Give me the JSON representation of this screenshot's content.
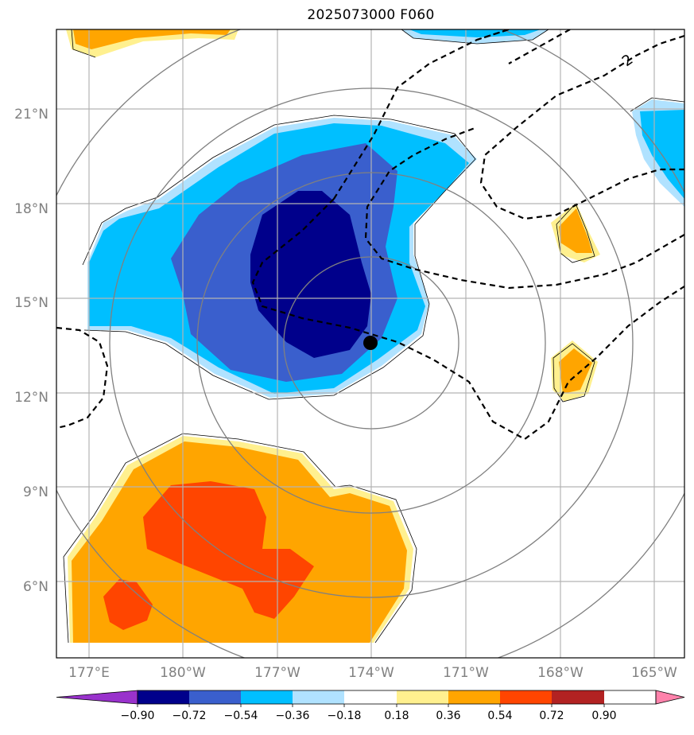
{
  "title": "2025073000 F060",
  "axes": {
    "lat_labels": [
      "6°N",
      "9°N",
      "12°N",
      "15°N",
      "18°N",
      "21°N"
    ],
    "lon_labels": [
      "177°E",
      "180°W",
      "177°W",
      "174°W",
      "171°W",
      "168°W",
      "165°W"
    ]
  },
  "contour_label": "2",
  "colorbar": {
    "tick_labels": [
      "−0.90",
      "−0.72",
      "−0.54",
      "−0.36",
      "−0.18",
      "0.18",
      "0.36",
      "0.54",
      "0.72",
      "0.90"
    ],
    "colors": [
      "#9932cc",
      "#00008b",
      "#3a5fcd",
      "#00bfff",
      "#b0e2ff",
      "#ffffff",
      "#fff08f",
      "#ffa500",
      "#ff4500",
      "#b22222",
      "#ff82ab"
    ]
  },
  "storm_center": {
    "lat": 13.5,
    "lon": -174.0
  },
  "colors": {
    "grid": "#b3b3b3",
    "range_rings": "#808080",
    "contour_dashed": "#000000"
  }
}
